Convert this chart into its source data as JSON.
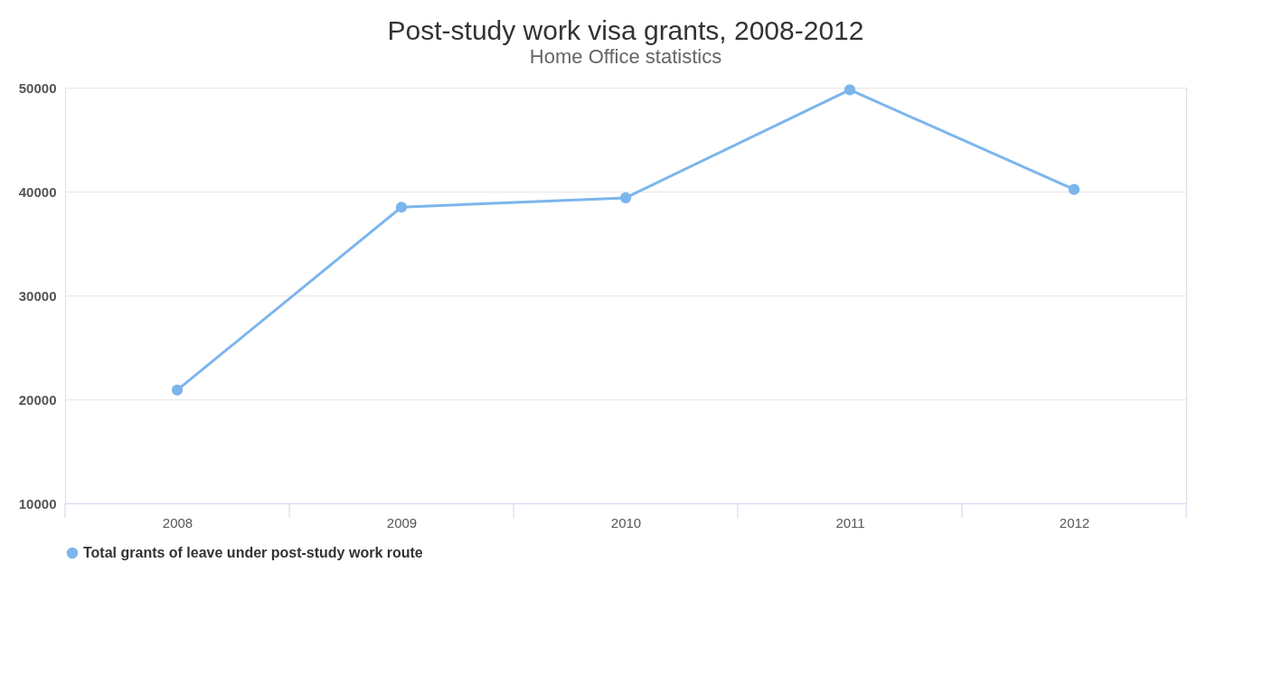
{
  "chart_data": {
    "type": "line",
    "title": "Post-study work visa grants, 2008-2012",
    "subtitle": "Home Office statistics",
    "categories": [
      "2008",
      "2009",
      "2010",
      "2011",
      "2012"
    ],
    "series": [
      {
        "name": "Total grants of leave under post-study work route",
        "color": "#7cb5ec",
        "values": [
          20900,
          38500,
          39400,
          49800,
          40200
        ]
      }
    ],
    "ylim": [
      10000,
      50000
    ],
    "yticks": [
      10000,
      20000,
      30000,
      40000,
      50000
    ],
    "grid": "y",
    "legend": "bottom",
    "marker": "circle",
    "line_style": "solid"
  }
}
